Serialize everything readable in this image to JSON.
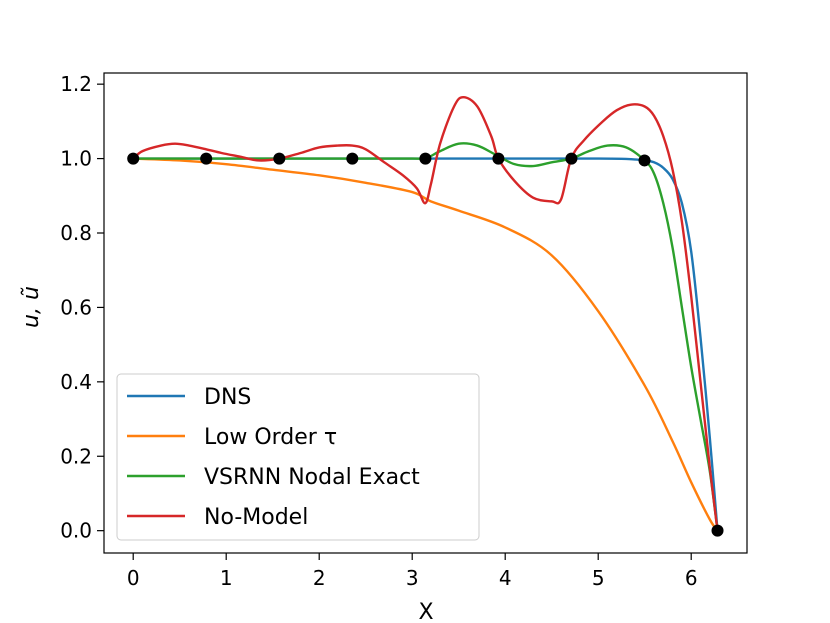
{
  "chart_data": {
    "type": "line",
    "xlabel": "X",
    "ylabel": "u, ũ",
    "xlim": [
      -0.314,
      6.6
    ],
    "ylim": [
      -0.06,
      1.23
    ],
    "xticks": [
      "0",
      "1",
      "2",
      "3",
      "4",
      "5",
      "6"
    ],
    "yticks": [
      "0.0",
      "0.2",
      "0.4",
      "0.6",
      "0.8",
      "1.0",
      "1.2"
    ],
    "legend_position": "lower-left",
    "series": [
      {
        "name": "DNS",
        "color": "#1f77b4",
        "points": [
          [
            0,
            1.0
          ],
          [
            1.0,
            1.0
          ],
          [
            2.0,
            1.0
          ],
          [
            3.0,
            1.0
          ],
          [
            4.0,
            1.0
          ],
          [
            5.0,
            1.0
          ],
          [
            5.3,
            0.999
          ],
          [
            5.5,
            0.995
          ],
          [
            5.6,
            0.99
          ],
          [
            5.7,
            0.975
          ],
          [
            5.8,
            0.945
          ],
          [
            5.9,
            0.88
          ],
          [
            6.0,
            0.75
          ],
          [
            6.1,
            0.52
          ],
          [
            6.2,
            0.25
          ],
          [
            6.283,
            0.0
          ]
        ]
      },
      {
        "name": "Low Order τ",
        "color": "#ff7f0e",
        "points": [
          [
            0,
            1.0
          ],
          [
            0.5,
            0.995
          ],
          [
            1.0,
            0.985
          ],
          [
            1.5,
            0.97
          ],
          [
            2.0,
            0.955
          ],
          [
            2.5,
            0.935
          ],
          [
            3.0,
            0.91
          ],
          [
            3.2,
            0.885
          ],
          [
            3.5,
            0.86
          ],
          [
            4.0,
            0.815
          ],
          [
            4.5,
            0.74
          ],
          [
            5.0,
            0.59
          ],
          [
            5.5,
            0.39
          ],
          [
            5.8,
            0.24
          ],
          [
            6.0,
            0.13
          ],
          [
            6.2,
            0.03
          ],
          [
            6.283,
            0.0
          ]
        ]
      },
      {
        "name": "VSRNN Nodal Exact",
        "color": "#2ca02c",
        "points": [
          [
            0,
            1.0
          ],
          [
            1.0,
            1.0
          ],
          [
            2.0,
            1.0
          ],
          [
            3.0,
            1.0
          ],
          [
            3.14,
            1.0
          ],
          [
            3.3,
            1.02
          ],
          [
            3.5,
            1.04
          ],
          [
            3.7,
            1.035
          ],
          [
            3.9,
            1.01
          ],
          [
            4.1,
            0.985
          ],
          [
            4.3,
            0.98
          ],
          [
            4.5,
            0.99
          ],
          [
            4.71,
            1.0
          ],
          [
            4.9,
            1.02
          ],
          [
            5.1,
            1.035
          ],
          [
            5.3,
            1.03
          ],
          [
            5.5,
            0.995
          ],
          [
            5.6,
            0.96
          ],
          [
            5.7,
            0.88
          ],
          [
            5.8,
            0.76
          ],
          [
            5.9,
            0.6
          ],
          [
            6.0,
            0.44
          ],
          [
            6.1,
            0.3
          ],
          [
            6.2,
            0.16
          ],
          [
            6.283,
            0.0
          ]
        ]
      },
      {
        "name": "No-Model",
        "color": "#d62728",
        "points": [
          [
            0,
            1.0
          ],
          [
            0.1,
            1.02
          ],
          [
            0.3,
            1.035
          ],
          [
            0.45,
            1.04
          ],
          [
            0.6,
            1.035
          ],
          [
            0.785,
            1.025
          ],
          [
            0.95,
            1.015
          ],
          [
            1.15,
            1.005
          ],
          [
            1.35,
            0.995
          ],
          [
            1.571,
            1.0
          ],
          [
            1.8,
            1.015
          ],
          [
            2.0,
            1.03
          ],
          [
            2.2,
            1.035
          ],
          [
            2.356,
            1.035
          ],
          [
            2.5,
            1.025
          ],
          [
            2.7,
            0.99
          ],
          [
            2.9,
            0.955
          ],
          [
            3.05,
            0.92
          ],
          [
            3.14,
            0.88
          ],
          [
            3.2,
            0.93
          ],
          [
            3.3,
            1.04
          ],
          [
            3.45,
            1.14
          ],
          [
            3.55,
            1.165
          ],
          [
            3.7,
            1.14
          ],
          [
            3.85,
            1.06
          ],
          [
            3.927,
            1.0
          ],
          [
            4.1,
            0.94
          ],
          [
            4.3,
            0.895
          ],
          [
            4.5,
            0.885
          ],
          [
            4.6,
            0.89
          ],
          [
            4.71,
            1.0
          ],
          [
            4.85,
            1.05
          ],
          [
            5.05,
            1.1
          ],
          [
            5.2,
            1.13
          ],
          [
            5.35,
            1.145
          ],
          [
            5.5,
            1.14
          ],
          [
            5.6,
            1.115
          ],
          [
            5.7,
            1.06
          ],
          [
            5.8,
            0.97
          ],
          [
            5.9,
            0.83
          ],
          [
            6.0,
            0.63
          ],
          [
            6.1,
            0.4
          ],
          [
            6.2,
            0.17
          ],
          [
            6.283,
            0.0
          ]
        ]
      }
    ],
    "markers": {
      "color": "#000000",
      "points": [
        [
          0,
          1.0
        ],
        [
          0.785,
          1.0
        ],
        [
          1.571,
          1.0
        ],
        [
          2.356,
          1.0
        ],
        [
          3.142,
          1.0
        ],
        [
          3.927,
          1.0
        ],
        [
          4.712,
          1.0
        ],
        [
          5.498,
          0.995
        ],
        [
          6.283,
          0.0
        ]
      ]
    }
  }
}
